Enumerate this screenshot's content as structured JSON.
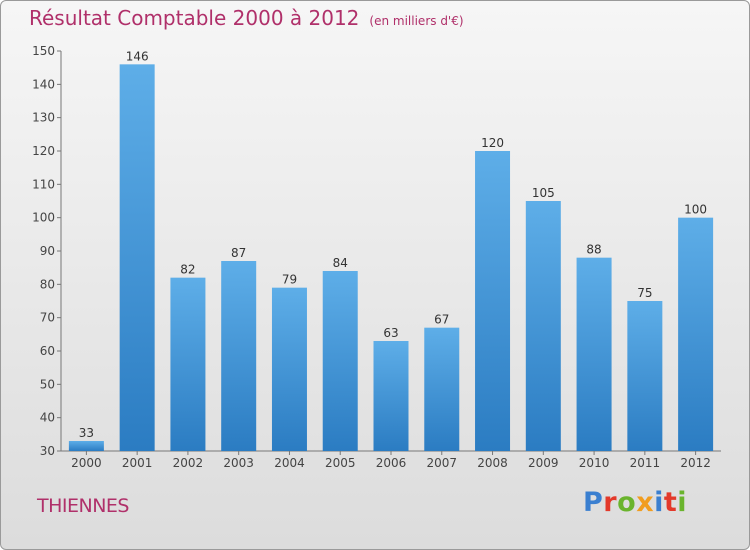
{
  "header": {
    "title": "Résultat Comptable 2000 à 2012",
    "subtitle": "(en milliers d'€)"
  },
  "footer": {
    "city": "THIENNES",
    "brand": "Proxiti"
  },
  "colors": {
    "title": "#b0306a",
    "bar_top": "#5eaee8",
    "bar_bottom": "#2b7cc2",
    "brand_letters": [
      "#3a7fd0",
      "#e3392a",
      "#6ab42d",
      "#f19d1f",
      "#3a7fd0",
      "#e3392a",
      "#6ab42d"
    ]
  },
  "chart_data": {
    "type": "bar",
    "categories": [
      "2000",
      "2001",
      "2002",
      "2003",
      "2004",
      "2005",
      "2006",
      "2007",
      "2008",
      "2009",
      "2010",
      "2011",
      "2012"
    ],
    "values": [
      33,
      146,
      82,
      87,
      79,
      84,
      63,
      67,
      120,
      105,
      88,
      75,
      100
    ],
    "ylim": [
      30,
      150
    ],
    "yticks": [
      30,
      40,
      50,
      60,
      70,
      80,
      90,
      100,
      110,
      120,
      130,
      140,
      150
    ],
    "grid": false,
    "legend": "none"
  }
}
